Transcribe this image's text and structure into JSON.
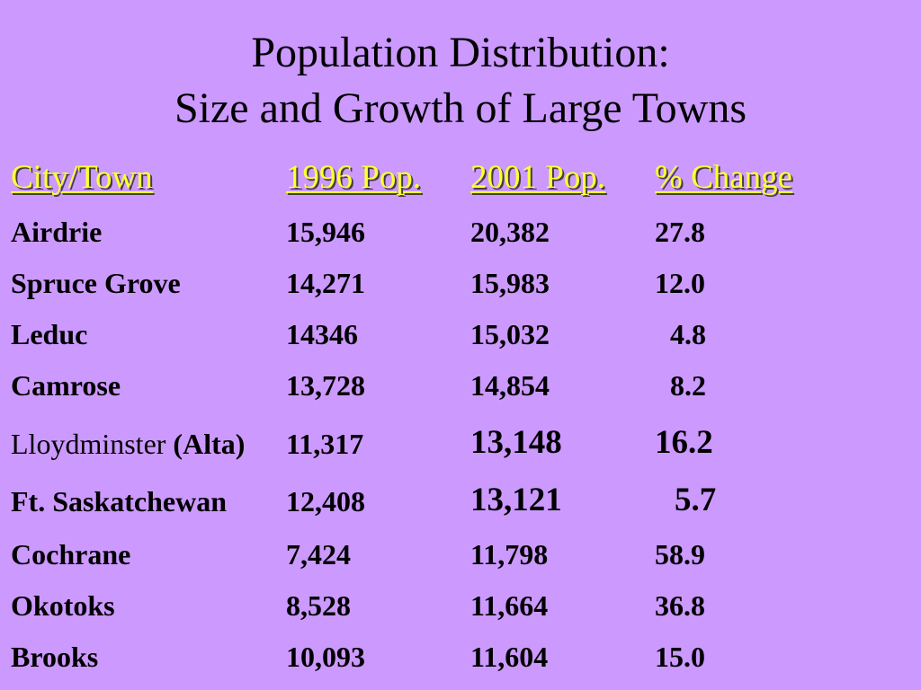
{
  "slide": {
    "title_line1": "Population Distribution:",
    "title_line2": "Size and Growth of Large Towns",
    "background_color": "#cc99ff",
    "header_color": "#ffff33"
  },
  "table": {
    "headers": [
      "City/Town",
      "1996 Pop.",
      "2001 Pop.",
      "% Change"
    ],
    "rows": [
      {
        "city": "Airdrie",
        "pop1996": "15,946",
        "pop2001": "20,382",
        "change": "27.8"
      },
      {
        "city": "Spruce Grove",
        "pop1996": "14,271",
        "pop2001": "15,983",
        "change": "12.0"
      },
      {
        "city": "Leduc",
        "pop1996": "14346",
        "pop2001": "15,032",
        "change": "4.8"
      },
      {
        "city": "Camrose",
        "pop1996": "13,728",
        "pop2001": "14,854",
        "change": "8.2"
      },
      {
        "city": "Lloydminster",
        "city_note": "(Alta)",
        "pop1996": "11,317",
        "pop2001": "13,148",
        "change": "16.2"
      },
      {
        "city": "Ft. Saskatchewan",
        "pop1996": "12,408",
        "pop2001": "13,121",
        "change": "5.7"
      },
      {
        "city": "Cochrane",
        "pop1996": "7,424",
        "pop2001": "11,798",
        "change": "58.9"
      },
      {
        "city": "Okotoks",
        "pop1996": "8,528",
        "pop2001": "11,664",
        "change": "36.8"
      },
      {
        "city": "Brooks",
        "pop1996": "10,093",
        "pop2001": "11,604",
        "change": "15.0"
      }
    ]
  }
}
